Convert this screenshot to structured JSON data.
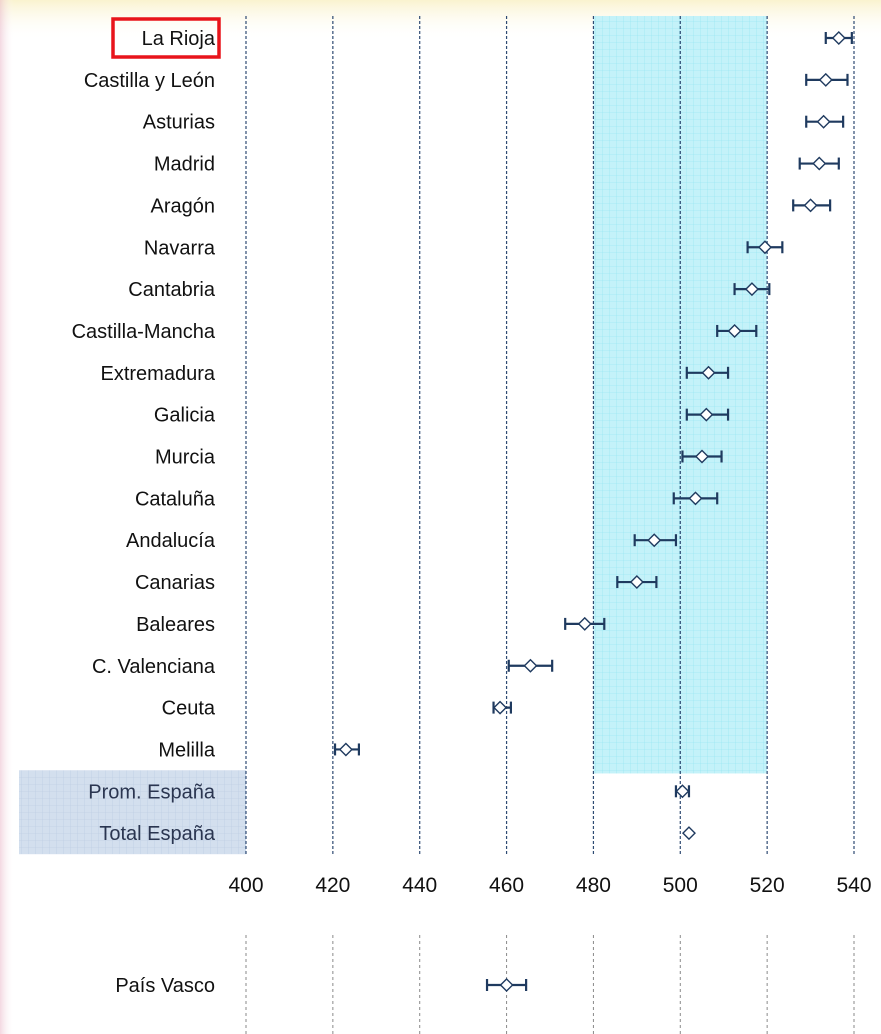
{
  "chart_data": {
    "type": "scatter",
    "title": "",
    "xlabel": "",
    "ylabel": "",
    "xlim": [
      400,
      540
    ],
    "x_ticks": [
      400,
      420,
      440,
      460,
      480,
      500,
      520,
      540
    ],
    "shaded_band": [
      480,
      520
    ],
    "highlight_label": "La Rioja",
    "colors": {
      "marker": "#1f3a5f",
      "band_fill": "#bff1f8",
      "band_grid": "#86e3f0",
      "summary_fill": "#cfdcec",
      "gridline": "#2e4a73",
      "highlight": "#e8141b"
    },
    "regions": [
      {
        "label": "La Rioja",
        "value": 536.5,
        "low": 533.5,
        "high": 539.5
      },
      {
        "label": "Castilla y León",
        "value": 533.5,
        "low": 529,
        "high": 538.5
      },
      {
        "label": "Asturias",
        "value": 533,
        "low": 529,
        "high": 537.5
      },
      {
        "label": "Madrid",
        "value": 532,
        "low": 527.5,
        "high": 536.5
      },
      {
        "label": "Aragón",
        "value": 530,
        "low": 526,
        "high": 534.5
      },
      {
        "label": "Navarra",
        "value": 519.5,
        "low": 515.5,
        "high": 523.5
      },
      {
        "label": "Cantabria",
        "value": 516.5,
        "low": 512.5,
        "high": 520.5
      },
      {
        "label": "Castilla-Mancha",
        "value": 512.5,
        "low": 508.5,
        "high": 517.5
      },
      {
        "label": "Extremadura",
        "value": 506.5,
        "low": 501.5,
        "high": 511
      },
      {
        "label": "Galicia",
        "value": 506,
        "low": 501.5,
        "high": 511
      },
      {
        "label": "Murcia",
        "value": 505,
        "low": 500.5,
        "high": 509.5
      },
      {
        "label": "Cataluña",
        "value": 503.5,
        "low": 498.5,
        "high": 508.5
      },
      {
        "label": "Andalucía",
        "value": 494,
        "low": 489.5,
        "high": 499
      },
      {
        "label": "Canarias",
        "value": 490,
        "low": 485.5,
        "high": 494.5
      },
      {
        "label": "Baleares",
        "value": 478,
        "low": 473.5,
        "high": 482.5
      },
      {
        "label": "C. Valenciana",
        "value": 465.5,
        "low": 460.5,
        "high": 470.5
      },
      {
        "label": "Ceuta",
        "value": 458.5,
        "low": 457,
        "high": 461
      },
      {
        "label": "Melilla",
        "value": 423,
        "low": 420.5,
        "high": 426
      }
    ],
    "summary": [
      {
        "label": "Prom. España",
        "value": 500.5,
        "low": 499,
        "high": 502
      },
      {
        "label": "Total España",
        "value": 502,
        "low": null,
        "high": null
      }
    ],
    "separate": [
      {
        "label": "País Vasco",
        "value": 460,
        "low": 455.5,
        "high": 464.5
      }
    ]
  }
}
